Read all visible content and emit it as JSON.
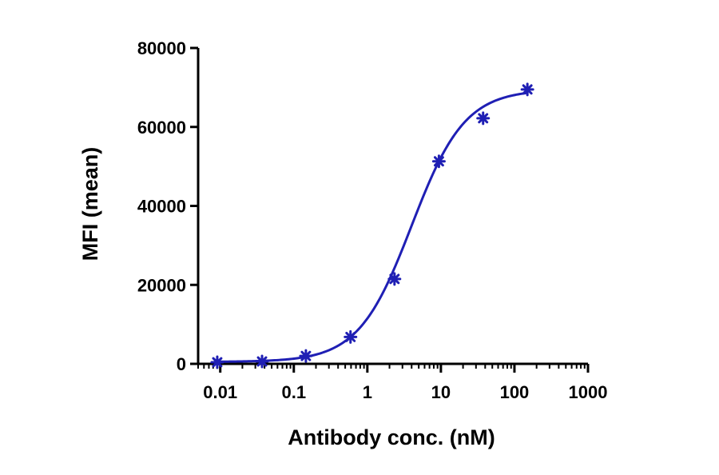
{
  "chart_data": {
    "type": "scatter",
    "title": "",
    "xlabel": "Antibody conc. (nM)",
    "ylabel": "MFI (mean)",
    "x_scale": "log",
    "xlim": [
      0.005,
      1000
    ],
    "ylim": [
      0,
      80000
    ],
    "x_ticks": [
      {
        "value": 0.01,
        "label": "0.01"
      },
      {
        "value": 0.1,
        "label": "0.1"
      },
      {
        "value": 1,
        "label": "1"
      },
      {
        "value": 10,
        "label": "10"
      },
      {
        "value": 100,
        "label": "100"
      },
      {
        "value": 1000,
        "label": "1000"
      }
    ],
    "y_ticks": [
      {
        "value": 0,
        "label": "0"
      },
      {
        "value": 20000,
        "label": "20000"
      },
      {
        "value": 40000,
        "label": "40000"
      },
      {
        "value": 60000,
        "label": "60000"
      },
      {
        "value": 80000,
        "label": "80000"
      }
    ],
    "series": [
      {
        "color": "#1f1fb4",
        "marker": "asterisk",
        "points": [
          {
            "x": 0.0091,
            "y": 400
          },
          {
            "x": 0.037,
            "y": 600
          },
          {
            "x": 0.146,
            "y": 2000
          },
          {
            "x": 0.59,
            "y": 6800
          },
          {
            "x": 2.34,
            "y": 21500
          },
          {
            "x": 9.4,
            "y": 51300
          },
          {
            "x": 37.5,
            "y": 62200
          },
          {
            "x": 150,
            "y": 69500
          }
        ],
        "fit": {
          "model": "4PL",
          "bottom": 500,
          "top": 69500,
          "ec50": 4.0,
          "hill": 1.2
        }
      }
    ],
    "grid": false,
    "legend": "none"
  }
}
